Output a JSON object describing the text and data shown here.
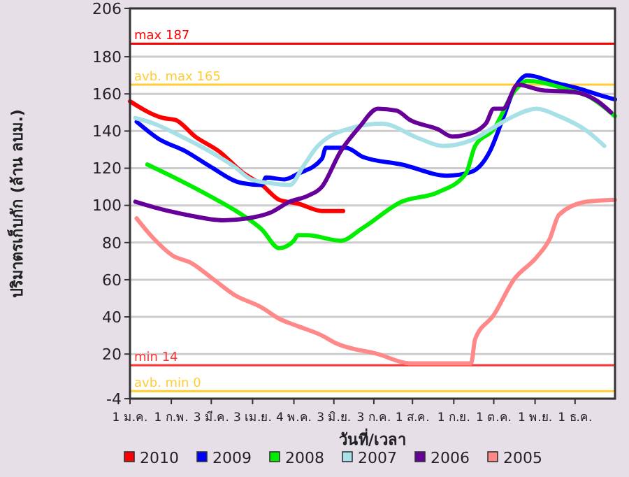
{
  "chart_data": {
    "type": "line",
    "xlabel": "วันที่/เวลา",
    "ylabel": "ปริมาตรเก็บกัก (ล้าน ลบม.)",
    "xlim": [
      "--01-01",
      "--12-31"
    ],
    "xticks": [
      {
        "value": "--01-01",
        "label": "1 ม.ค."
      },
      {
        "value": "--02-01",
        "label": "1 ก.พ."
      },
      {
        "value": "--03-03",
        "label": "3 มี.ค."
      },
      {
        "value": "--04-03",
        "label": "3 เม.ย."
      },
      {
        "value": "--05-04",
        "label": "4 พ.ค."
      },
      {
        "value": "--06-03",
        "label": "3 มิ.ย."
      },
      {
        "value": "--07-03",
        "label": "3 ก.ค."
      },
      {
        "value": "--08-01",
        "label": "1 ส.ค."
      },
      {
        "value": "--09-01",
        "label": "1 ก.ย."
      },
      {
        "value": "--10-01",
        "label": "1 ต.ค."
      },
      {
        "value": "--11-01",
        "label": "1 พ.ย."
      },
      {
        "value": "--12-01",
        "label": "1 ธ.ค."
      }
    ],
    "ylim": [
      -4,
      206
    ],
    "yticks": [
      -4,
      20,
      40,
      60,
      80,
      100,
      120,
      140,
      160,
      180,
      206
    ],
    "grid": "y",
    "legend": "bottom",
    "ref_lines": [
      {
        "axis": "y",
        "value": 187,
        "label": "max 187",
        "color": "#ff0000"
      },
      {
        "axis": "y",
        "value": 165,
        "label": "avb. max 165",
        "color": "#ffcc33"
      },
      {
        "axis": "y",
        "value": 14,
        "label": "min 14",
        "color": "#ff3333"
      },
      {
        "axis": "y",
        "value": 0,
        "label": "avb. min 0",
        "color": "#ffcc33"
      }
    ],
    "series": [
      {
        "name": "2010",
        "color": "#ff0000",
        "x": [
          "--01-01",
          "--01-26",
          "--02-04",
          "--02-19",
          "--03-09",
          "--03-26",
          "--04-10",
          "--04-23",
          "--05-07",
          "--05-25",
          "--06-10"
        ],
        "values": [
          156,
          147,
          146,
          137,
          129,
          118,
          111,
          103,
          101,
          97,
          97
        ]
      },
      {
        "name": "2009",
        "color": "#0000ff",
        "x": [
          "--01-06",
          "--01-22",
          "--02-12",
          "--03-02",
          "--03-26",
          "--04-10",
          "--04-13",
          "--04-27",
          "--05-07",
          "--05-25",
          "--05-28",
          "--06-12",
          "--06-25",
          "--07-24",
          "--08-27",
          "--09-14",
          "--09-28",
          "--10-08",
          "--10-16",
          "--10-26",
          "--11-16",
          "--12-03",
          "--12-21",
          "--12-31"
        ],
        "values": [
          145,
          136,
          129,
          121,
          112,
          111,
          115,
          114,
          117,
          125,
          131,
          131,
          126,
          122,
          116,
          118,
          129,
          147,
          162,
          170,
          166,
          163,
          159,
          157
        ]
      },
      {
        "name": "2008",
        "color": "#00ee00",
        "x": [
          "--01-14",
          "--02-06",
          "--03-02",
          "--03-26",
          "--04-10",
          "--04-23",
          "--05-04",
          "--05-07",
          "--05-14",
          "--06-08",
          "--06-25",
          "--07-24",
          "--08-20",
          "--09-10",
          "--09-17",
          "--10-01",
          "--10-16",
          "--10-26",
          "--11-27",
          "--12-10",
          "--12-31"
        ],
        "values": [
          122,
          114,
          105,
          95,
          87,
          77,
          81,
          84,
          84,
          81,
          88,
          102,
          107,
          117,
          132,
          141,
          161,
          167,
          162,
          159,
          148
        ]
      },
      {
        "name": "2007",
        "color": "#a8e0e8",
        "x": [
          "--01-05",
          "--01-19",
          "--02-06",
          "--03-02",
          "--03-20",
          "--04-02",
          "--04-16",
          "--05-01",
          "--05-11",
          "--05-22",
          "--06-18",
          "--07-09",
          "--08-06",
          "--08-24",
          "--09-14",
          "--10-01",
          "--10-16",
          "--11-02",
          "--11-19",
          "--12-10",
          "--12-23"
        ],
        "values": [
          147,
          144,
          138,
          129,
          121,
          114,
          112,
          111,
          121,
          132,
          142,
          144,
          136,
          132,
          135,
          142,
          148,
          152,
          148,
          140,
          132
        ]
      },
      {
        "name": "2006",
        "color": "#660099",
        "x": [
          "--01-05",
          "--01-19",
          "--02-12",
          "--03-12",
          "--03-30",
          "--04-16",
          "--05-01",
          "--05-14",
          "--05-25",
          "--06-08",
          "--06-22",
          "--07-06",
          "--07-20",
          "--07-30",
          "--08-20",
          "--08-31",
          "--09-10",
          "--09-25",
          "--10-01",
          "--10-08",
          "--10-19",
          "--11-06",
          "--11-30",
          "--12-18",
          "--12-28"
        ],
        "values": [
          102,
          99,
          95,
          92,
          93,
          96,
          102,
          105,
          110,
          129,
          142,
          152,
          151,
          146,
          141,
          137,
          138,
          144,
          152,
          152,
          165,
          162,
          161,
          156,
          150
        ]
      },
      {
        "name": "2005",
        "color": "#ff8888",
        "x": [
          "--01-06",
          "--01-19",
          "--02-02",
          "--02-16",
          "--03-05",
          "--03-20",
          "--04-10",
          "--04-23",
          "--05-07",
          "--05-25",
          "--06-04",
          "--07-06",
          "--07-30",
          "--09-14",
          "--09-17",
          "--10-01",
          "--10-16",
          "--11-02",
          "--11-12",
          "--11-19",
          "--12-10",
          "--12-31"
        ],
        "values": [
          93,
          82,
          73,
          69,
          60,
          52,
          45,
          39,
          35,
          30,
          26,
          20,
          15,
          15,
          28,
          41,
          60,
          72,
          82,
          95,
          102,
          103
        ]
      }
    ]
  }
}
